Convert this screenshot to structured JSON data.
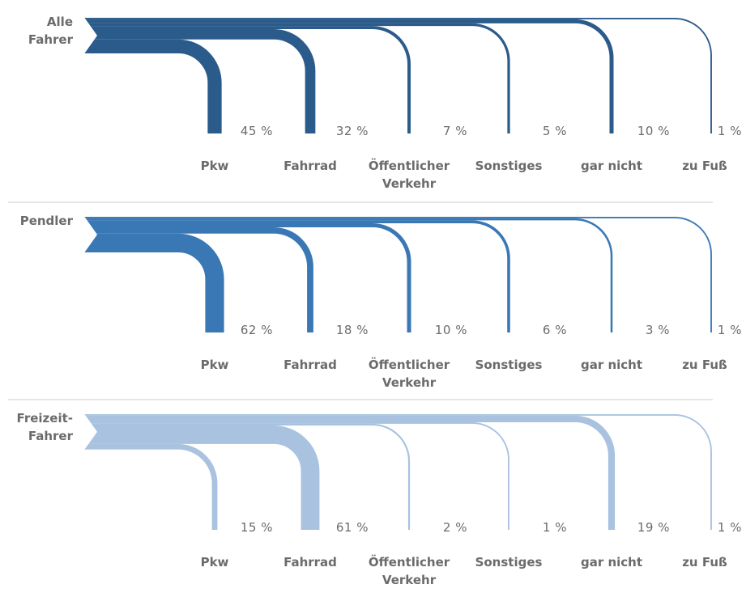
{
  "chart_data": [
    {
      "type": "flow",
      "title": "Alle Fahrer",
      "color": "#2b5b8a",
      "categories": [
        "Pkw",
        "Fahrrad",
        "Öffentlicher Verkehr",
        "Sonstiges",
        "gar nicht",
        "zu Fuß"
      ],
      "values": [
        45,
        32,
        7,
        5,
        10,
        1
      ],
      "value_labels": [
        "45 %",
        "32 %",
        "7 %",
        "5 %",
        "10 %",
        "1 %"
      ]
    },
    {
      "type": "flow",
      "title": "Pendler",
      "color": "#3a78b5",
      "categories": [
        "Pkw",
        "Fahrrad",
        "Öffentlicher Verkehr",
        "Sonstiges",
        "gar nicht",
        "zu Fuß"
      ],
      "values": [
        62,
        18,
        10,
        6,
        3,
        1
      ],
      "value_labels": [
        "62 %",
        "18 %",
        "10 %",
        "6 %",
        "3 %",
        "1 %"
      ]
    },
    {
      "type": "flow",
      "title": "Freizeit-Fahrer",
      "color": "#a9c2e0",
      "categories": [
        "Pkw",
        "Fahrrad",
        "Öffentlicher Verkehr",
        "Sonstiges",
        "gar nicht",
        "zu Fuß"
      ],
      "values": [
        15,
        61,
        2,
        1,
        19,
        1
      ],
      "value_labels": [
        "15 %",
        "61 %",
        "2 %",
        "1 %",
        "19 %",
        "1 %"
      ]
    }
  ]
}
